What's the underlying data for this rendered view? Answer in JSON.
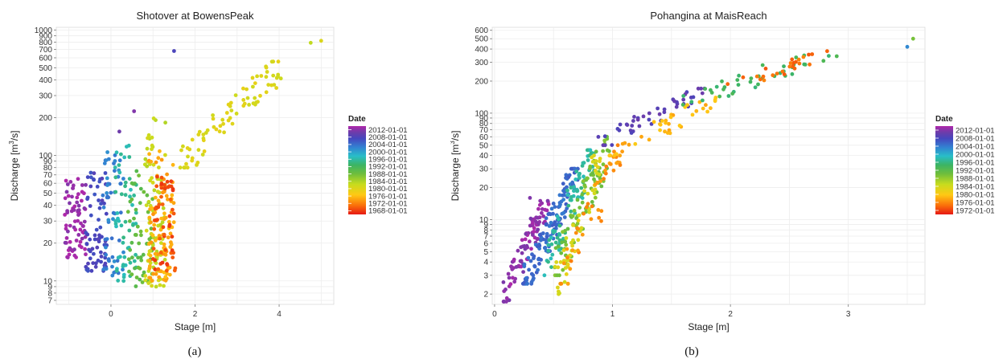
{
  "chart_data": [
    {
      "type": "scatter",
      "panel_label": "(a)",
      "title": "Shotover at BowensPeak",
      "xlabel": "Stage [m]",
      "ylabel_base": "Discharge  [m",
      "ylabel_exp": "3",
      "ylabel_tail": "/s]",
      "y_scale": "log",
      "xlim": [
        -1.3,
        5.3
      ],
      "ylim": [
        6.5,
        1050
      ],
      "x_ticks": [
        0,
        2,
        4
      ],
      "x_tick_labels": [
        "0",
        "2",
        "4"
      ],
      "y_ticks": [
        7,
        8,
        9,
        10,
        20,
        30,
        40,
        50,
        60,
        70,
        80,
        90,
        100,
        200,
        300,
        400,
        500,
        600,
        700,
        800,
        900,
        1000
      ],
      "y_tick_labels": [
        "7",
        "8",
        "9",
        "10",
        "20",
        "30",
        "40",
        "50",
        "60",
        "70",
        "80",
        "90",
        "100",
        "200",
        "300",
        "400",
        "500",
        "600",
        "700",
        "800",
        "900",
        "1000"
      ],
      "grid": true,
      "color_by": "Date",
      "legend": {
        "title": "Date",
        "placement": "right",
        "labels": [
          "2012-01-01",
          "2008-01-01",
          "2004-01-01",
          "2000-01-01",
          "1996-01-01",
          "1992-01-01",
          "1988-01-01",
          "1984-01-01",
          "1980-01-01",
          "1976-01-01",
          "1972-01-01",
          "1968-01-01"
        ],
        "range": [
          "1966-01-01",
          "2014-01-01"
        ]
      },
      "clusters": [
        {
          "t": 0.98,
          "x": [
            -1.1,
            -0.6
          ],
          "y": [
            15,
            65
          ],
          "n": 75
        },
        {
          "t": 0.86,
          "x": [
            -0.6,
            -0.1
          ],
          "y": [
            12,
            75
          ],
          "n": 70
        },
        {
          "t": 0.76,
          "x": [
            -0.2,
            0.3
          ],
          "y": [
            11,
            110
          ],
          "n": 55
        },
        {
          "t": 0.62,
          "x": [
            0.1,
            0.6
          ],
          "y": [
            10,
            130
          ],
          "n": 55
        },
        {
          "t": 0.48,
          "x": [
            0.4,
            1.0
          ],
          "y": [
            9,
            80
          ],
          "n": 55
        },
        {
          "t": 0.34,
          "x": [
            0.8,
            1.3
          ],
          "y": [
            9,
            200
          ],
          "n": 80
        },
        {
          "t": 0.18,
          "x": [
            0.9,
            1.5
          ],
          "y": [
            10,
            110
          ],
          "n": 90
        },
        {
          "t": 0.06,
          "x": [
            1.0,
            1.6
          ],
          "y": [
            12,
            70
          ],
          "n": 55
        },
        {
          "t": 0.3,
          "x": [
            1.6,
            4.1
          ],
          "y": [
            80,
            560
          ],
          "n": 80,
          "trend": true
        }
      ],
      "extra_points": [
        {
          "x": 4.75,
          "y": 790,
          "t": 0.35
        },
        {
          "x": 5.0,
          "y": 820,
          "t": 0.3
        },
        {
          "x": 1.5,
          "y": 680,
          "t": 0.87
        },
        {
          "x": 0.55,
          "y": 225,
          "t": 0.95
        },
        {
          "x": 0.2,
          "y": 155,
          "t": 0.93
        }
      ]
    },
    {
      "type": "scatter",
      "panel_label": "(b)",
      "title": "Pohangina at MaisReach",
      "xlabel": "Stage [m]",
      "ylabel_base": "Discharge  [m",
      "ylabel_exp": "3",
      "ylabel_tail": "/s]",
      "y_scale": "log",
      "xlim": [
        -0.02,
        3.65
      ],
      "ylim": [
        1.6,
        640
      ],
      "x_ticks": [
        0,
        1,
        2,
        3
      ],
      "x_tick_labels": [
        "0",
        "1",
        "2",
        "3"
      ],
      "y_ticks": [
        2,
        3,
        4,
        5,
        6,
        7,
        8,
        9,
        10,
        20,
        30,
        40,
        50,
        60,
        70,
        80,
        90,
        100,
        200,
        300,
        400,
        500,
        600
      ],
      "y_tick_labels": [
        "2",
        "3",
        "4",
        "5",
        "6",
        "7",
        "8",
        "9",
        "10",
        "20",
        "30",
        "40",
        "50",
        "60",
        "70",
        "80",
        "90",
        "100",
        "200",
        "300",
        "400",
        "500",
        "600"
      ],
      "grid": true,
      "color_by": "Date",
      "legend": {
        "title": "Date",
        "placement": "right",
        "labels": [
          "2012-01-01",
          "2008-01-01",
          "2004-01-01",
          "2000-01-01",
          "1996-01-01",
          "1992-01-01",
          "1988-01-01",
          "1984-01-01",
          "1980-01-01",
          "1976-01-01",
          "1972-01-01"
        ],
        "range": [
          "1970-01-01",
          "2014-01-01"
        ]
      },
      "clusters": [
        {
          "t": 0.97,
          "x": [
            0.06,
            0.45
          ],
          "y": [
            1.7,
            15
          ],
          "n": 90,
          "trend": true
        },
        {
          "t": 0.8,
          "x": [
            0.25,
            0.7
          ],
          "y": [
            2.5,
            30
          ],
          "n": 130,
          "trend": true
        },
        {
          "t": 0.62,
          "x": [
            0.4,
            0.85
          ],
          "y": [
            3,
            45
          ],
          "n": 80,
          "trend": true
        },
        {
          "t": 0.45,
          "x": [
            0.5,
            1.0
          ],
          "y": [
            3,
            60
          ],
          "n": 80,
          "trend": true
        },
        {
          "t": 0.3,
          "x": [
            0.5,
            0.9
          ],
          "y": [
            2,
            40
          ],
          "n": 55,
          "trend": true
        },
        {
          "t": 0.15,
          "x": [
            0.55,
            1.1
          ],
          "y": [
            2.5,
            50
          ],
          "n": 45,
          "trend": true
        },
        {
          "t": 0.9,
          "x": [
            0.9,
            1.8
          ],
          "y": [
            50,
            170
          ],
          "n": 45,
          "trend": true
        },
        {
          "t": 0.2,
          "x": [
            1.0,
            1.9
          ],
          "y": [
            40,
            140
          ],
          "n": 40,
          "trend": true
        },
        {
          "t": 0.55,
          "x": [
            1.6,
            2.9
          ],
          "y": [
            120,
            400
          ],
          "n": 40,
          "trend": true
        },
        {
          "t": 0.1,
          "x": [
            2.0,
            2.9
          ],
          "y": [
            180,
            390
          ],
          "n": 25,
          "trend": true
        }
      ],
      "extra_points": [
        {
          "x": 3.55,
          "y": 500,
          "t": 0.45
        },
        {
          "x": 3.5,
          "y": 420,
          "t": 0.75
        },
        {
          "x": 0.3,
          "y": 16,
          "t": 0.95
        }
      ]
    }
  ]
}
